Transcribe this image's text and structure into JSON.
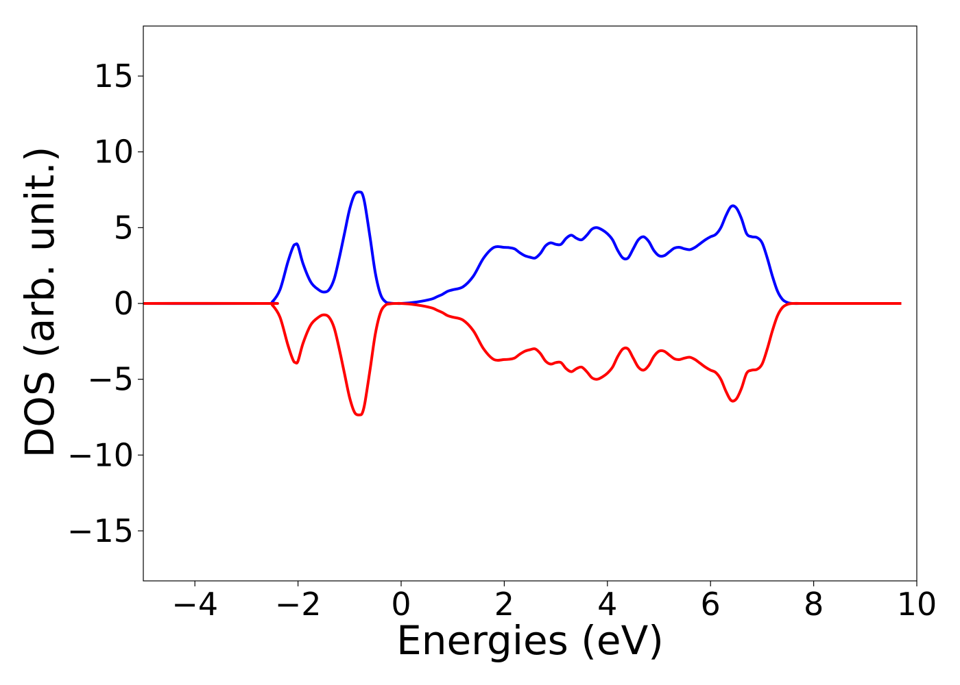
{
  "chart_data": {
    "type": "line",
    "title": "",
    "xlabel": "Energies (eV)",
    "ylabel": "DOS (arb. unit.)",
    "xlim": [
      -5,
      10
    ],
    "ylim": [
      -18.3,
      18.3
    ],
    "xticks": [
      -4,
      -2,
      0,
      2,
      4,
      6,
      8,
      10
    ],
    "xtick_labels": [
      "−4",
      "−2",
      "0",
      "2",
      "4",
      "6",
      "8",
      "10"
    ],
    "yticks": [
      -15,
      -10,
      -5,
      0,
      5,
      10,
      15
    ],
    "ytick_labels": [
      "−15",
      "−10",
      "−5",
      "0",
      "5",
      "10",
      "15"
    ],
    "grid": false,
    "legend": "none",
    "series": [
      {
        "color": "#0000ff",
        "x": [
          -5,
          -2.6,
          -2.5,
          -2.35,
          -2.2,
          -2.1,
          -2.05,
          -2.0,
          -1.9,
          -1.75,
          -1.6,
          -1.5,
          -1.4,
          -1.3,
          -1.2,
          -1.1,
          -1.0,
          -0.9,
          -0.8,
          -0.75,
          -0.7,
          -0.6,
          -0.5,
          -0.4,
          -0.3,
          -0.2,
          -0.1,
          0.0,
          0.2,
          0.4,
          0.6,
          0.7,
          0.8,
          0.9,
          1.0,
          1.2,
          1.4,
          1.6,
          1.8,
          2.0,
          2.1,
          2.2,
          2.3,
          2.4,
          2.5,
          2.6,
          2.7,
          2.8,
          2.9,
          3.0,
          3.1,
          3.2,
          3.3,
          3.4,
          3.5,
          3.6,
          3.7,
          3.8,
          3.9,
          4.0,
          4.1,
          4.2,
          4.3,
          4.4,
          4.5,
          4.6,
          4.7,
          4.8,
          4.9,
          5.0,
          5.1,
          5.2,
          5.3,
          5.4,
          5.5,
          5.6,
          5.7,
          5.8,
          5.9,
          6.0,
          6.1,
          6.2,
          6.3,
          6.4,
          6.5,
          6.6,
          6.7,
          6.8,
          6.9,
          7.0,
          7.1,
          7.2,
          7.3,
          7.4,
          7.5,
          7.6,
          7.8,
          8.0,
          9.0,
          9.7
        ],
        "y": [
          0,
          0,
          0.1,
          0.9,
          2.7,
          3.7,
          3.9,
          3.8,
          2.6,
          1.4,
          0.9,
          0.75,
          0.9,
          1.6,
          3.0,
          4.6,
          6.2,
          7.2,
          7.35,
          7.2,
          6.5,
          4.3,
          2.0,
          0.6,
          0.1,
          0.02,
          0,
          0,
          0.05,
          0.15,
          0.3,
          0.45,
          0.6,
          0.8,
          0.9,
          1.1,
          1.8,
          3.0,
          3.7,
          3.7,
          3.68,
          3.6,
          3.35,
          3.15,
          3.05,
          3.0,
          3.3,
          3.8,
          4.0,
          3.9,
          3.9,
          4.3,
          4.5,
          4.3,
          4.2,
          4.5,
          4.9,
          5.0,
          4.85,
          4.6,
          4.2,
          3.5,
          3.0,
          3.0,
          3.6,
          4.2,
          4.4,
          4.1,
          3.5,
          3.15,
          3.15,
          3.4,
          3.65,
          3.7,
          3.6,
          3.55,
          3.7,
          3.95,
          4.2,
          4.4,
          4.55,
          5.0,
          5.8,
          6.4,
          6.3,
          5.6,
          4.6,
          4.4,
          4.35,
          4.0,
          3.0,
          1.8,
          0.8,
          0.25,
          0.05,
          0,
          0,
          0,
          0,
          0
        ]
      },
      {
        "color": "#ff0000",
        "x": [
          -5,
          -2.6,
          -2.5,
          -2.35,
          -2.2,
          -2.1,
          -2.05,
          -2.0,
          -1.9,
          -1.75,
          -1.6,
          -1.5,
          -1.4,
          -1.3,
          -1.2,
          -1.1,
          -1.0,
          -0.9,
          -0.8,
          -0.75,
          -0.7,
          -0.6,
          -0.5,
          -0.4,
          -0.3,
          -0.2,
          -0.1,
          0.0,
          0.2,
          0.4,
          0.6,
          0.7,
          0.8,
          0.9,
          1.0,
          1.2,
          1.4,
          1.6,
          1.8,
          2.0,
          2.1,
          2.2,
          2.3,
          2.4,
          2.5,
          2.6,
          2.7,
          2.8,
          2.9,
          3.0,
          3.1,
          3.2,
          3.3,
          3.4,
          3.5,
          3.6,
          3.7,
          3.8,
          3.9,
          4.0,
          4.1,
          4.2,
          4.3,
          4.4,
          4.5,
          4.6,
          4.7,
          4.8,
          4.9,
          5.0,
          5.1,
          5.2,
          5.3,
          5.4,
          5.5,
          5.6,
          5.7,
          5.8,
          5.9,
          6.0,
          6.1,
          6.2,
          6.3,
          6.4,
          6.5,
          6.6,
          6.7,
          6.8,
          6.9,
          7.0,
          7.1,
          7.2,
          7.3,
          7.4,
          7.5,
          7.6,
          7.8,
          8.0,
          9.0,
          9.7
        ],
        "y": [
          0,
          0,
          -0.1,
          -0.9,
          -2.7,
          -3.7,
          -3.9,
          -3.8,
          -2.6,
          -1.4,
          -0.9,
          -0.75,
          -0.9,
          -1.6,
          -3.0,
          -4.6,
          -6.2,
          -7.2,
          -7.35,
          -7.2,
          -6.5,
          -4.3,
          -2.0,
          -0.6,
          -0.1,
          -0.02,
          0,
          0,
          -0.05,
          -0.15,
          -0.3,
          -0.45,
          -0.6,
          -0.8,
          -0.9,
          -1.1,
          -1.8,
          -3.0,
          -3.7,
          -3.7,
          -3.68,
          -3.6,
          -3.35,
          -3.15,
          -3.05,
          -3.0,
          -3.3,
          -3.8,
          -4.0,
          -3.9,
          -3.9,
          -4.3,
          -4.5,
          -4.3,
          -4.2,
          -4.5,
          -4.9,
          -5.0,
          -4.85,
          -4.6,
          -4.2,
          -3.5,
          -3.0,
          -3.0,
          -3.6,
          -4.2,
          -4.4,
          -4.1,
          -3.5,
          -3.15,
          -3.15,
          -3.4,
          -3.65,
          -3.7,
          -3.6,
          -3.55,
          -3.7,
          -3.95,
          -4.2,
          -4.4,
          -4.55,
          -5.0,
          -5.8,
          -6.4,
          -6.3,
          -5.6,
          -4.6,
          -4.4,
          -4.35,
          -4.0,
          -3.0,
          -1.8,
          -0.8,
          -0.25,
          -0.05,
          0,
          0,
          0,
          0,
          0
        ]
      }
    ]
  }
}
